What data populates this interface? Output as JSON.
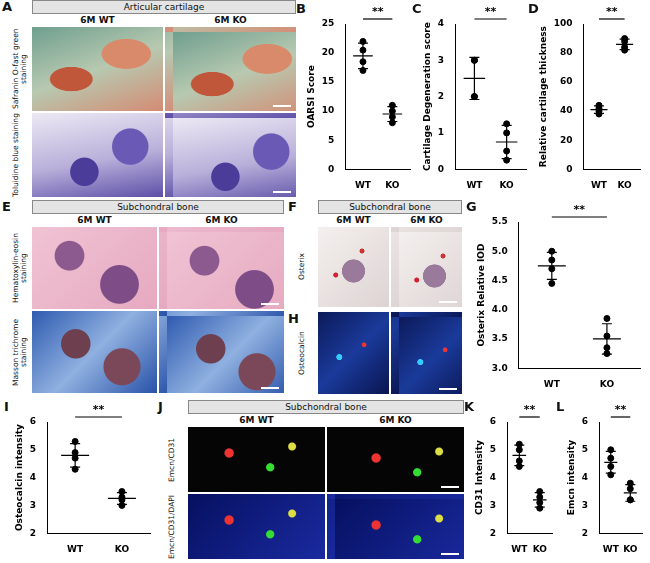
{
  "image_panels": [
    {
      "panel_letter": "A",
      "header": "Articular cartilage",
      "columns": [
        "6M WT",
        "6M KO"
      ],
      "rows": [
        "Safranin O-fast green staining",
        "Toluidine blue staining"
      ]
    },
    {
      "panel_letter": "E",
      "header": "Subchondral bone",
      "columns": [
        "6M WT",
        "6M KO"
      ],
      "rows": [
        "Hematoxylin-eosin staining",
        "Masson trichrome staining"
      ]
    },
    {
      "panel_letter": "F",
      "header": "Subchondral bone",
      "columns": [
        "6M WT",
        "6M KO"
      ],
      "rows": [
        "Osterix"
      ]
    },
    {
      "panel_letter": "H",
      "rows": [
        "Osteocalcin"
      ]
    },
    {
      "panel_letter": "J",
      "header": "Subchondral bone",
      "columns": [
        "6M WT",
        "6M KO"
      ],
      "rows": [
        "Emcn/CD31",
        "Emcn/CD31/DAPI"
      ]
    }
  ],
  "chart_data": [
    {
      "panel_letter": "B",
      "type": "scatter",
      "y_label": "OARSI Score",
      "categories": [
        "WT",
        "KO"
      ],
      "values": [
        [
          22,
          20.5,
          18.5,
          17
        ],
        [
          11,
          10,
          9,
          8
        ]
      ],
      "means": [
        19.5,
        9.5
      ],
      "sd": [
        2.2,
        1.29
      ],
      "ylim": [
        0,
        25
      ],
      "yticks": [
        0,
        5,
        10,
        15,
        20,
        25
      ],
      "annotation": "**",
      "color": "#000000"
    },
    {
      "panel_letter": "C",
      "type": "scatter",
      "y_label": "Cartilage Degeneration score",
      "categories": [
        "WT",
        "KO"
      ],
      "values": [
        [
          3,
          3,
          2,
          2
        ],
        [
          1.25,
          1,
          0.5,
          0.25
        ]
      ],
      "means": [
        2.5,
        0.75
      ],
      "sd": [
        0.58,
        0.46
      ],
      "ylim": [
        0,
        4
      ],
      "yticks": [
        0,
        1,
        2,
        3,
        4
      ],
      "annotation": "**",
      "color": "#000000"
    },
    {
      "panel_letter": "D",
      "type": "scatter",
      "y_label": "Relative cartilage thickness",
      "categories": [
        "WT",
        "KO"
      ],
      "values": [
        [
          44,
          42,
          40,
          38
        ],
        [
          90,
          88,
          84,
          82
        ]
      ],
      "means": [
        41,
        86
      ],
      "sd": [
        2.58,
        3.65
      ],
      "ylim": [
        0,
        100
      ],
      "yticks": [
        0,
        20,
        40,
        60,
        80,
        100
      ],
      "annotation": "**",
      "color": "#000000"
    },
    {
      "panel_letter": "G",
      "type": "scatter",
      "y_label": "Osterix Relative IOD",
      "categories": [
        "WT",
        "KO"
      ],
      "values": [
        [
          5.0,
          4.85,
          4.7,
          4.45
        ],
        [
          3.85,
          3.55,
          3.35,
          3.25
        ]
      ],
      "means": [
        4.75,
        3.5
      ],
      "sd": [
        0.23,
        0.26
      ],
      "ylim": [
        3,
        5.5
      ],
      "yticks": [
        {
          "value": 3,
          "label": "3.0"
        },
        3.5,
        {
          "value": 4,
          "label": "4.0"
        },
        4.5,
        {
          "value": 5,
          "label": "5.0"
        },
        5.5
      ],
      "annotation": "**",
      "color": "#000000"
    },
    {
      "panel_letter": "I",
      "type": "scatter",
      "y_label": "Osteocalcin intensity",
      "categories": [
        "WT",
        "KO"
      ],
      "values": [
        [
          5.3,
          4.9,
          4.7,
          4.3
        ],
        [
          3.5,
          3.3,
          3.2,
          3.0
        ]
      ],
      "means": [
        4.8,
        3.25
      ],
      "sd": [
        0.42,
        0.21
      ],
      "ylim": [
        2,
        6
      ],
      "yticks": [
        2,
        3,
        4,
        5,
        6
      ],
      "annotation": "**",
      "color": "#000000"
    },
    {
      "panel_letter": "K",
      "type": "scatter",
      "y_label": "CD31 Intensity",
      "categories": [
        "WT",
        "KO"
      ],
      "values": [
        [
          5.2,
          5.0,
          4.6,
          4.4
        ],
        [
          3.5,
          3.3,
          3.1,
          2.9
        ]
      ],
      "means": [
        4.8,
        3.2
      ],
      "sd": [
        0.37,
        0.26
      ],
      "ylim": [
        2,
        6
      ],
      "yticks": [
        2,
        3,
        4,
        5,
        6
      ],
      "annotation": "**",
      "color": "#000000"
    },
    {
      "panel_letter": "L",
      "type": "scatter",
      "y_label": "Emcn intensity",
      "categories": [
        "WT",
        "KO"
      ],
      "values": [
        [
          5.0,
          4.7,
          4.4,
          4.1
        ],
        [
          3.8,
          3.6,
          3.2,
          3.2
        ]
      ],
      "means": [
        4.55,
        3.45
      ],
      "sd": [
        0.39,
        0.3
      ],
      "ylim": [
        2,
        6
      ],
      "yticks": [
        2,
        3,
        4,
        5,
        6
      ],
      "annotation": "**",
      "color": "#000000"
    }
  ]
}
